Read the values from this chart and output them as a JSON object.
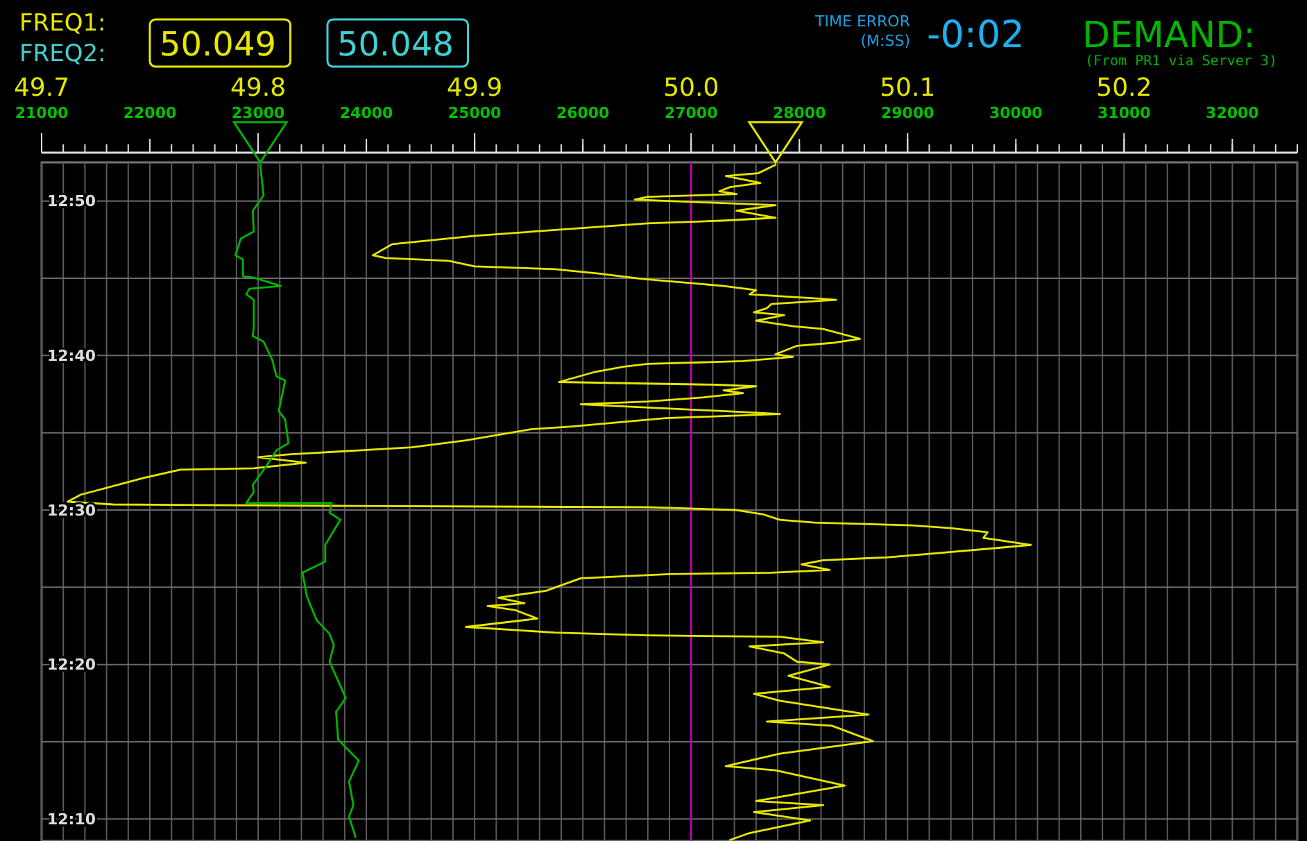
{
  "chart_data": {
    "type": "line",
    "grid": true,
    "xlim": [
      49.7,
      50.28
    ],
    "xticks": [
      49.7,
      {
        "value": 49.71,
        "label": null
      },
      {
        "value": 49.72,
        "label": null
      },
      {
        "value": 49.73,
        "label": null
      },
      {
        "value": 49.74,
        "label": null
      },
      {
        "value": 49.75,
        "label": null
      },
      {
        "value": 49.76,
        "label": null
      },
      {
        "value": 49.77,
        "label": null
      },
      {
        "value": 49.78,
        "label": null
      },
      {
        "value": 49.79,
        "label": null
      },
      49.8,
      {
        "value": 49.81,
        "label": null
      },
      {
        "value": 49.82,
        "label": null
      },
      {
        "value": 49.83,
        "label": null
      },
      {
        "value": 49.84,
        "label": null
      },
      {
        "value": 49.85,
        "label": null
      },
      {
        "value": 49.86,
        "label": null
      },
      {
        "value": 49.87,
        "label": null
      },
      {
        "value": 49.88,
        "label": null
      },
      {
        "value": 49.89,
        "label": null
      },
      49.9,
      {
        "value": 49.91,
        "label": null
      },
      {
        "value": 49.92,
        "label": null
      },
      {
        "value": 49.93,
        "label": null
      },
      {
        "value": 49.94,
        "label": null
      },
      {
        "value": 49.95,
        "label": null
      },
      {
        "value": 49.96,
        "label": null
      },
      {
        "value": 49.97,
        "label": null
      },
      {
        "value": 49.98,
        "label": null
      },
      {
        "value": 49.99,
        "label": null
      },
      {
        "value": 50,
        "label": "50.0"
      },
      {
        "value": 50.01,
        "label": null
      },
      {
        "value": 50.02,
        "label": null
      },
      {
        "value": 50.03,
        "label": null
      },
      {
        "value": 50.04,
        "label": null
      },
      {
        "value": 50.05,
        "label": null
      },
      {
        "value": 50.06,
        "label": null
      },
      {
        "value": 50.07,
        "label": null
      },
      {
        "value": 50.08,
        "label": null
      },
      {
        "value": 50.09,
        "label": null
      },
      50.1,
      {
        "value": 50.11,
        "label": null
      },
      {
        "value": 50.12,
        "label": null
      },
      {
        "value": 50.13,
        "label": null
      },
      {
        "value": 50.14,
        "label": null
      },
      {
        "value": 50.15,
        "label": null
      },
      {
        "value": 50.16,
        "label": null
      },
      {
        "value": 50.17,
        "label": null
      },
      {
        "value": 50.18,
        "label": null
      },
      {
        "value": 50.19,
        "label": null
      },
      50.2,
      {
        "value": 50.21,
        "label": null
      },
      {
        "value": 50.22,
        "label": null
      },
      {
        "value": 50.23,
        "label": null
      },
      {
        "value": 50.24,
        "label": null
      },
      {
        "value": 50.25,
        "label": null
      },
      {
        "value": 50.26,
        "label": null
      },
      {
        "value": 50.27,
        "label": null
      },
      {
        "value": 50.28,
        "label": null
      }
    ],
    "x2lim": [
      21000,
      32600
    ],
    "x2ticks": [
      21000,
      22000,
      23000,
      24000,
      25000,
      26000,
      27000,
      28000,
      29000,
      30000,
      31000,
      32000
    ],
    "ylim": [
      12.143,
      12.875
    ],
    "yticks": [
      {
        "value": 12.1667,
        "label": "12:10"
      },
      {
        "value": 12.25,
        "label": null
      },
      {
        "value": 12.3333,
        "label": "12:20"
      },
      {
        "value": 12.4167,
        "label": null
      },
      {
        "value": 12.5,
        "label": "12:30"
      },
      {
        "value": 12.5833,
        "label": null
      },
      {
        "value": 12.6667,
        "label": "12:40"
      },
      {
        "value": 12.75,
        "label": null
      },
      {
        "value": 12.8333,
        "label": "12:50"
      }
    ],
    "ref_lines": [
      {
        "axis": "x",
        "value": 50.0,
        "color": "#c000c0"
      }
    ],
    "annotations": [
      "FREQ2:",
      "50.049",
      "50.048",
      "TIME ERROR",
      "(M:SS)",
      "-0:02",
      "(From PR1 via Server 3)"
    ],
    "series": [
      {
        "name": "FREQ1:",
        "color": "#e6e600",
        "x": [
          50.039,
          50.031,
          50.016,
          50.032,
          50.018,
          50.013,
          50.021,
          49.98,
          49.974,
          50.039,
          50.021,
          50.039,
          50.016,
          49.98,
          49.9,
          49.862,
          49.853,
          49.859,
          49.888,
          49.9,
          49.937,
          49.957,
          49.978,
          50.015,
          50.03,
          50.027,
          50.058,
          50.067,
          50.037,
          50.035,
          50.029,
          50.043,
          50.03,
          50.047,
          50.061,
          50.078,
          50.065,
          50.049,
          50.039,
          50.047,
          50.024,
          49.98,
          49.969,
          49.955,
          49.939,
          49.974,
          50.012,
          50.03,
          50.015,
          50.024,
          50.006,
          49.98,
          49.949,
          50.029,
          50.041,
          49.988,
          49.945,
          49.926,
          49.896,
          49.871,
          49.814,
          49.8,
          49.822,
          49.798,
          49.764,
          49.747,
          49.718,
          49.712,
          49.733,
          49.835,
          49.98,
          50.021,
          50.033,
          50.041,
          50.057,
          50.102,
          50.12,
          50.137,
          50.135,
          50.157,
          50.143,
          50.113,
          50.09,
          50.061,
          50.051,
          50.064,
          50.037,
          49.99,
          49.949,
          49.933,
          49.911,
          49.923,
          49.906,
          49.919,
          49.929,
          49.896,
          49.937,
          49.98,
          50.041,
          50.061,
          50.027,
          50.043,
          50.049,
          50.064,
          50.045,
          50.064,
          50.029,
          50.041,
          50.082,
          50.035,
          50.065,
          50.084,
          50.041,
          50.016,
          50.039,
          50.071,
          50.03,
          50.061,
          50.029,
          50.055,
          50.027,
          50.018
        ],
        "values": [
          12.8723,
          12.8633,
          12.8603,
          12.8528,
          12.8483,
          12.8438,
          12.8408,
          12.8378,
          12.8348,
          12.8288,
          12.8228,
          12.8153,
          12.8123,
          12.8093,
          12.7958,
          12.7868,
          12.7748,
          12.7718,
          12.7688,
          12.7628,
          12.7598,
          12.7552,
          12.7492,
          12.7417,
          12.7372,
          12.7327,
          12.7282,
          12.7267,
          12.7222,
          12.7177,
          12.7132,
          12.7102,
          12.7042,
          12.6982,
          12.6952,
          12.6847,
          12.6802,
          12.6772,
          12.6681,
          12.6651,
          12.6606,
          12.6576,
          12.6546,
          12.6486,
          12.6381,
          12.6366,
          12.6351,
          12.6336,
          12.6291,
          12.6261,
          12.6216,
          12.6171,
          12.6141,
          12.6051,
          12.6036,
          12.5991,
          12.5901,
          12.5871,
          12.5751,
          12.5676,
          12.56,
          12.557,
          12.551,
          12.545,
          12.5435,
          12.5345,
          12.5165,
          12.509,
          12.506,
          12.5045,
          12.503,
          12.5,
          12.4955,
          12.4895,
          12.4865,
          12.4835,
          12.4805,
          12.476,
          12.47,
          12.4624,
          12.4594,
          12.4534,
          12.4489,
          12.4459,
          12.4414,
          12.4354,
          12.4324,
          12.4309,
          12.4264,
          12.4129,
          12.4054,
          12.3994,
          12.3964,
          12.3919,
          12.3829,
          12.3739,
          12.3678,
          12.3648,
          12.3633,
          12.3573,
          12.3528,
          12.3453,
          12.3363,
          12.3333,
          12.3213,
          12.3093,
          12.3018,
          12.2943,
          12.2793,
          12.2718,
          12.2673,
          12.2507,
          12.2372,
          12.2237,
          12.2192,
          12.2027,
          12.1861,
          12.1816,
          12.1741,
          12.1651,
          12.1516,
          12.1441
        ]
      },
      {
        "name": "DEMAND:",
        "color": "#00b400",
        "axis": "x2",
        "x": [
          23020,
          23050,
          22950,
          22960,
          22840,
          22790,
          22860,
          22860,
          22960,
          23210,
          22920,
          22890,
          22960,
          22960,
          22950,
          23050,
          23130,
          23170,
          23250,
          23190,
          23250,
          23280,
          23170,
          23070,
          22950,
          22960,
          22890,
          23680,
          23660,
          23760,
          23620,
          23620,
          23410,
          23450,
          23540,
          23660,
          23700,
          23660,
          23810,
          23720,
          23740,
          23930,
          23840,
          23880,
          23840,
          23900
        ],
        "values": [
          12.8723,
          12.8393,
          12.8228,
          12.8003,
          12.7928,
          12.7748,
          12.7702,
          12.7522,
          12.7507,
          12.7417,
          12.7387,
          12.7327,
          12.7267,
          12.6967,
          12.6877,
          12.6817,
          12.6621,
          12.6441,
          12.6396,
          12.6066,
          12.5976,
          12.572,
          12.5645,
          12.5465,
          12.527,
          12.5195,
          12.5075,
          12.5075,
          12.497,
          12.4895,
          12.4624,
          12.4444,
          12.4324,
          12.4069,
          12.3813,
          12.3663,
          12.3543,
          12.3363,
          12.2973,
          12.2823,
          12.2522,
          12.2297,
          12.2072,
          12.1816,
          12.1696,
          12.1471
        ]
      }
    ]
  }
}
